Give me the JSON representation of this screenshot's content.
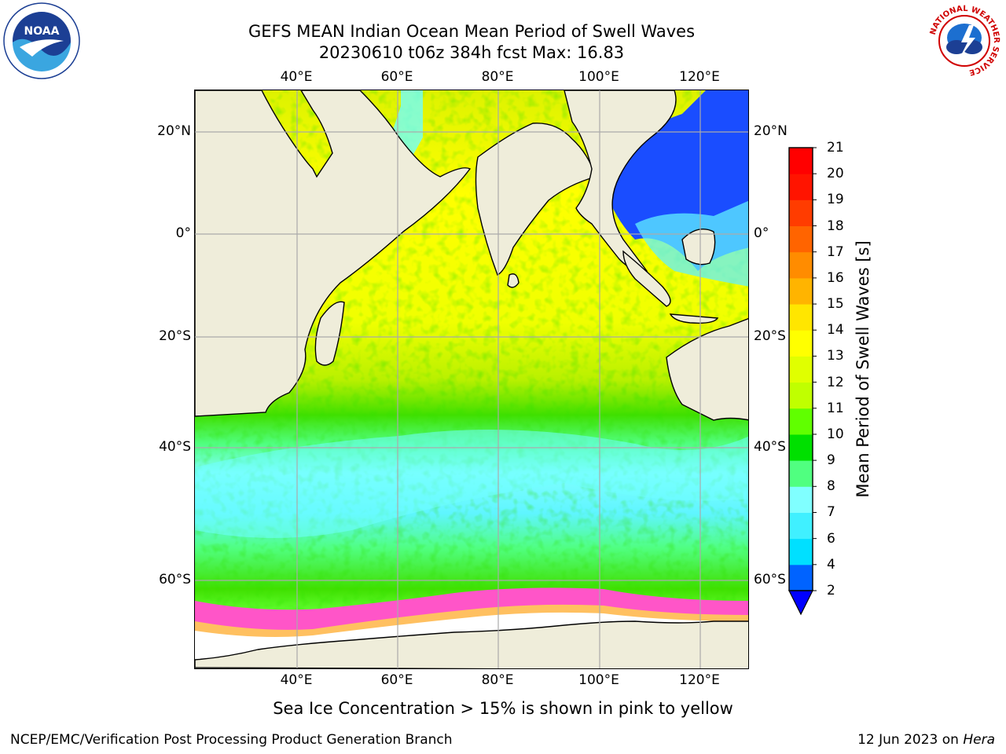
{
  "title_line1": "GEFS MEAN Indian Ocean Mean Period of Swell Waves",
  "title_line2": "20230610 t06z 384h fcst   Max: 16.83",
  "lon_ticks": [
    "40°E",
    "60°E",
    "80°E",
    "100°E",
    "120°E"
  ],
  "lat_ticks": [
    "20°N",
    "0°",
    "20°S",
    "40°S",
    "60°S"
  ],
  "colorbar": {
    "label": "Mean Period of Swell Waves [s]",
    "levels": [
      "2",
      "4",
      "6",
      "7",
      "8",
      "9",
      "10",
      "11",
      "12",
      "13",
      "14",
      "15",
      "16",
      "17",
      "18",
      "19",
      "20",
      "21"
    ],
    "colors": [
      "#0063ff",
      "#00e0ff",
      "#40f0ff",
      "#80ffff",
      "#50ff80",
      "#00e000",
      "#60ff00",
      "#c0ff00",
      "#e0ff00",
      "#ffff00",
      "#ffe600",
      "#ffb400",
      "#ff8c00",
      "#ff6400",
      "#ff3c00",
      "#ff1400",
      "#ff0000"
    ],
    "under_color": "#0000ff"
  },
  "caption": "Sea Ice Concentration > 15% is shown in pink to yellow",
  "footer_left": "NCEP/EMC/Verification Post Processing Product Generation Branch",
  "footer_right_prefix": "12 Jun 2023 on ",
  "footer_right_host": "Hera",
  "logos": {
    "noaa_center_text": "NOAA",
    "nws_ring_text": "NATIONAL WEATHER SERVICE"
  }
}
